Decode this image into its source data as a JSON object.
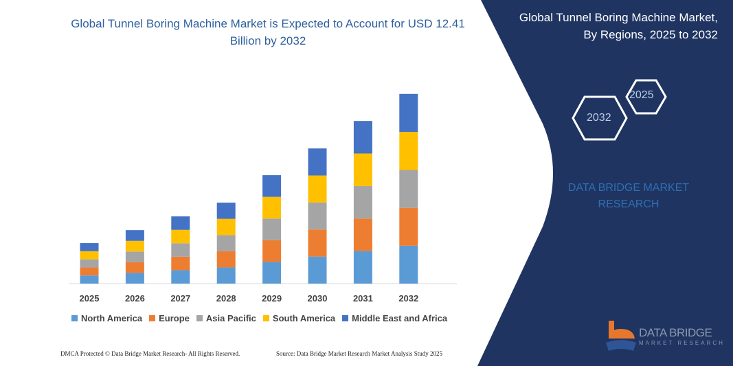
{
  "title": "Global Tunnel Boring Machine Market is Expected to Account for USD 12.41 Billion by 2032",
  "side_panel": {
    "title_line1": "Global Tunnel Boring Machine Market,",
    "title_line2": "By Regions, 2025 to 2032",
    "hex_years": [
      "2025",
      "2032"
    ],
    "brand_line1": "DATA BRIDGE MARKET",
    "brand_line2": "RESEARCH",
    "logo_text": "DATA BRIDGE",
    "logo_subtext": "MARKET RESEARCH",
    "background_color": "#1f3461"
  },
  "footer": {
    "left": "DMCA Protected © Data Bridge Market Research-  All Rights Reserved.",
    "right": "Source: Data Bridge Market Research  Market Analysis Study 2025"
  },
  "chart_data": {
    "type": "bar",
    "stacked": true,
    "title": "Global Tunnel Boring Machine Market is Expected to Account for USD 12.41 Billion by 2032",
    "categories": [
      "2025",
      "2026",
      "2027",
      "2028",
      "2029",
      "2030",
      "2031",
      "2032"
    ],
    "series": [
      {
        "name": "North America",
        "color": "#5b9bd5",
        "values": [
          0.53,
          0.7,
          0.88,
          1.06,
          1.42,
          1.77,
          2.13,
          2.48
        ]
      },
      {
        "name": "Europe",
        "color": "#ed7d31",
        "values": [
          0.53,
          0.7,
          0.88,
          1.06,
          1.42,
          1.77,
          2.13,
          2.48
        ]
      },
      {
        "name": "Asia Pacific",
        "color": "#a5a5a5",
        "values": [
          0.53,
          0.7,
          0.88,
          1.06,
          1.42,
          1.77,
          2.13,
          2.48
        ]
      },
      {
        "name": "South America",
        "color": "#ffc000",
        "values": [
          0.53,
          0.7,
          0.88,
          1.06,
          1.42,
          1.77,
          2.13,
          2.49
        ]
      },
      {
        "name": "Middle East and Africa",
        "color": "#4472c4",
        "values": [
          0.53,
          0.7,
          0.88,
          1.06,
          1.42,
          1.77,
          2.13,
          2.49
        ]
      }
    ],
    "ylim": [
      0,
      12.41
    ],
    "y_axis_shown": false,
    "grid": false,
    "legend_position": "bottom"
  }
}
